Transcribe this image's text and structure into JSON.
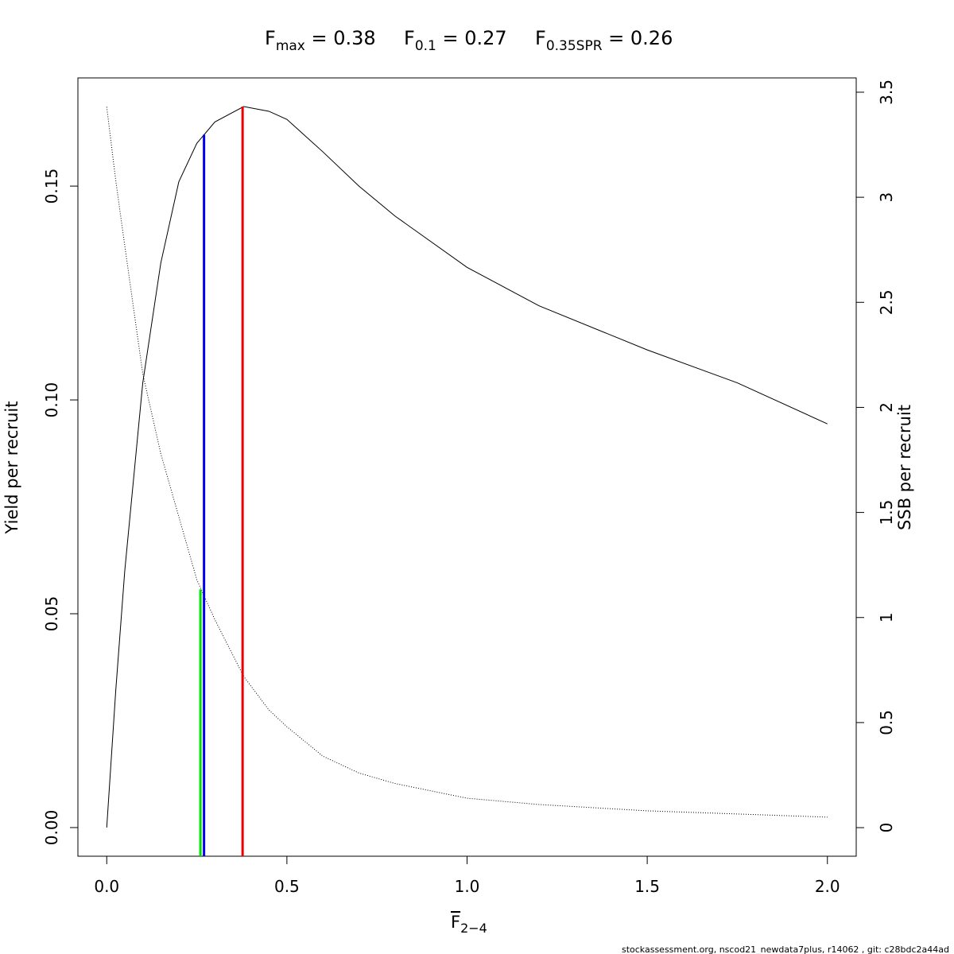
{
  "chart_data": {
    "type": "line",
    "title": [
      {
        "base": "F",
        "sub": "max",
        "text": " = 0.38"
      },
      {
        "base": "F",
        "sub": "0.1",
        "text": " = 0.27"
      },
      {
        "base": "F",
        "sub": "0.35SPR",
        "text": " = 0.26"
      }
    ],
    "x_label": {
      "base": "F",
      "sub": "2−4"
    },
    "y_label": "Yield per recruit",
    "y2_label": "SSB per recruit",
    "footer": "stockassessment.org, nscod21_newdata7plus, r14062 , git: c28bdc2a44ad",
    "x": [
      0,
      0.025,
      0.05,
      0.1,
      0.15,
      0.2,
      0.25,
      0.3,
      0.38,
      0.45,
      0.5,
      0.6,
      0.7,
      0.8,
      1.0,
      1.2,
      1.5,
      1.75,
      2.0
    ],
    "series": [
      {
        "color": "#000000",
        "dash": "solid",
        "axis": "y",
        "values": [
          0,
          0.032,
          0.06,
          0.104,
          0.132,
          0.151,
          0.16,
          0.165,
          0.1686,
          0.1675,
          0.1656,
          0.158,
          0.15,
          0.143,
          0.131,
          0.122,
          0.1117,
          0.104,
          0.0944
        ]
      },
      {
        "color": "#000000",
        "dash": "dotted",
        "axis": "y2",
        "values": [
          3.43,
          3.08,
          2.77,
          2.16,
          1.78,
          1.48,
          1.18,
          0.99,
          0.72,
          0.56,
          0.48,
          0.34,
          0.26,
          0.21,
          0.14,
          0.11,
          0.08,
          0.065,
          0.05
        ]
      }
    ],
    "reference_lines": [
      {
        "x": 0.26,
        "y": 0.0557,
        "color": "#00dd00"
      },
      {
        "x": 0.27,
        "y": 0.162,
        "color": "#0000ee"
      },
      {
        "x": 0.377,
        "y": 0.1686,
        "color": "#ee0000"
      }
    ],
    "xlim": [
      -0.08,
      2.08
    ],
    "ylim": [
      -0.0067,
      0.1753
    ],
    "y2lim": [
      -0.136,
      3.568
    ],
    "xticks": [
      {
        "value": 0,
        "label": "0.0"
      },
      {
        "value": 0.5,
        "label": "0.5"
      },
      {
        "value": 1,
        "label": "1.0"
      },
      {
        "value": 1.5,
        "label": "1.5"
      },
      {
        "value": 2,
        "label": "2.0"
      }
    ],
    "yticks": [
      {
        "value": 0,
        "label": "0.00"
      },
      {
        "value": 0.05,
        "label": "0.05"
      },
      {
        "value": 0.1,
        "label": "0.10"
      },
      {
        "value": 0.15,
        "label": "0.15"
      }
    ],
    "y2ticks": [
      0,
      0.5,
      1,
      1.5,
      2,
      2.5,
      3,
      3.5
    ]
  }
}
